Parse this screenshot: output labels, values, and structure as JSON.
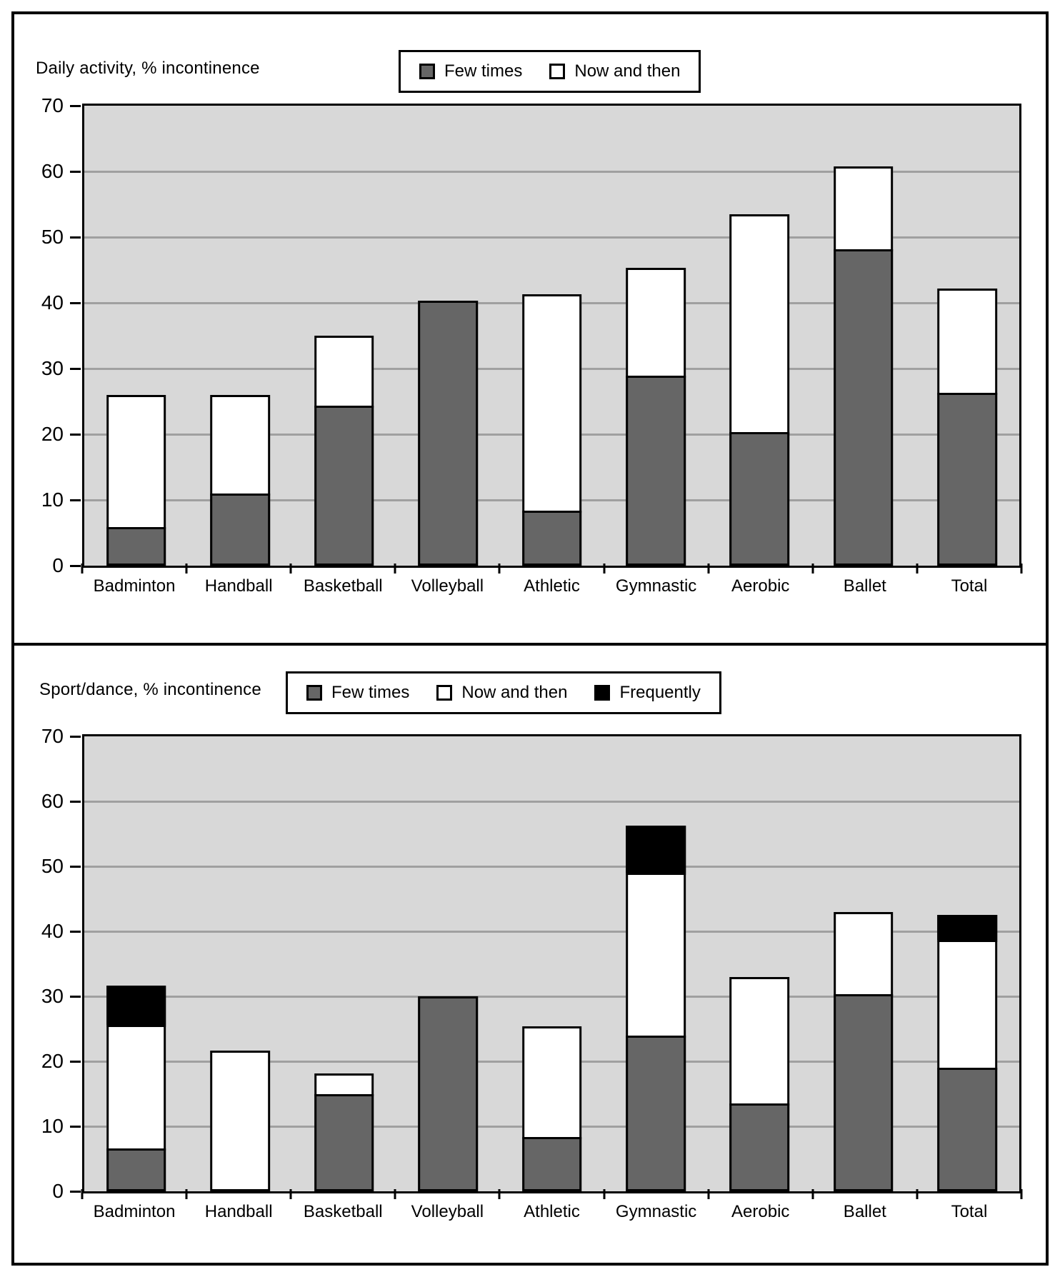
{
  "figure": {
    "background": "#ffffff",
    "plot_background": "#d8d8d8",
    "gridline_color": "#a0a0a0",
    "border_color": "#000000"
  },
  "chart_data": [
    {
      "type": "bar",
      "subtype": "stacked-vertical",
      "title": "Daily activity, % incontinence",
      "categories": [
        "Badminton",
        "Handball",
        "Basketball",
        "Volleyball",
        "Athletic",
        "Gymnastic",
        "Aerobic",
        "Ballet",
        "Total"
      ],
      "series": [
        {
          "name": "Few times",
          "color": "#666666",
          "values": [
            5.5,
            10.7,
            24.0,
            40.3,
            8.0,
            28.6,
            20.0,
            47.8,
            26.0
          ]
        },
        {
          "name": "Now and then",
          "color": "#ffffff",
          "values": [
            20.5,
            15.3,
            11.0,
            0,
            33.3,
            16.7,
            33.5,
            13.0,
            16.2
          ]
        }
      ],
      "stacked_totals": [
        26.0,
        26.0,
        35.0,
        40.3,
        41.3,
        45.3,
        53.5,
        60.8,
        42.2
      ],
      "xlabel": "",
      "ylabel": "",
      "ylim": [
        0,
        70
      ],
      "ytick_step": 10,
      "yticks": [
        0,
        10,
        20,
        30,
        40,
        50,
        60,
        70
      ],
      "grid": true,
      "legend_position": "top-center"
    },
    {
      "type": "bar",
      "subtype": "stacked-vertical",
      "title": "Sport/dance, % incontinence",
      "categories": [
        "Badminton",
        "Handball",
        "Basketball",
        "Volleyball",
        "Athletic",
        "Gymnastic",
        "Aerobic",
        "Ballet",
        "Total"
      ],
      "series": [
        {
          "name": "Few times",
          "color": "#666666",
          "values": [
            6.3,
            0,
            14.6,
            30.0,
            8.0,
            23.6,
            13.2,
            30.0,
            18.7
          ]
        },
        {
          "name": "Now and then",
          "color": "#ffffff",
          "values": [
            19.0,
            21.6,
            3.5,
            0,
            17.4,
            25.1,
            19.8,
            13.0,
            19.6
          ]
        },
        {
          "name": "Frequently",
          "color": "#000000",
          "values": [
            6.3,
            0,
            0,
            0,
            0,
            7.6,
            0,
            0,
            4.2
          ]
        }
      ],
      "stacked_totals": [
        31.6,
        21.6,
        18.1,
        30.0,
        25.4,
        56.3,
        33.0,
        43.0,
        42.5
      ],
      "xlabel": "",
      "ylabel": "",
      "ylim": [
        0,
        70
      ],
      "ytick_step": 10,
      "yticks": [
        0,
        10,
        20,
        30,
        40,
        50,
        60,
        70
      ],
      "grid": true,
      "legend_position": "top-center"
    }
  ]
}
